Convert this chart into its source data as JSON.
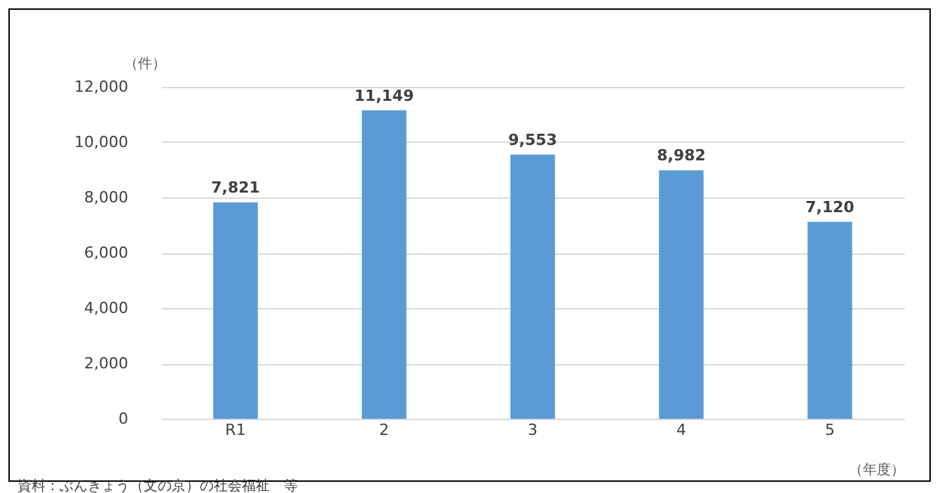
{
  "chart_data": {
    "type": "bar",
    "xlabel": "（年度）",
    "ylabel": "（件）",
    "categories": [
      "R1",
      "2",
      "3",
      "4",
      "5"
    ],
    "values": [
      7821,
      11149,
      9553,
      8982,
      7120
    ],
    "color": "#5b9bd5",
    "value_labels": [
      "7,821",
      "11,149",
      "9,553",
      "8,982",
      "7,120"
    ],
    "ylim": [
      0,
      12000
    ],
    "yticks": [
      {
        "value": 0,
        "label": "0"
      },
      {
        "value": 2000,
        "label": "2,000"
      },
      {
        "value": 4000,
        "label": "4,000"
      },
      {
        "value": 6000,
        "label": "6,000"
      },
      {
        "value": 8000,
        "label": "8,000"
      },
      {
        "value": 10000,
        "label": "10,000"
      },
      {
        "value": 12000,
        "label": "12,000"
      }
    ],
    "grid": "y",
    "annotations": [
      "資料：ぶんきょう（文の京）の社会福祉　等"
    ]
  }
}
